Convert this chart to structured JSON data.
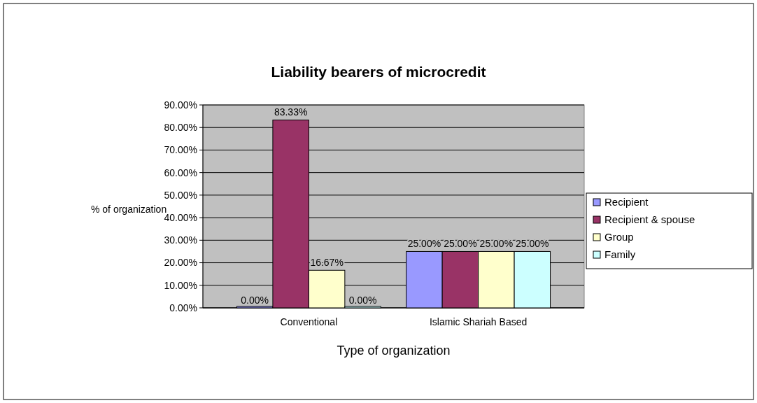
{
  "chart_data": {
    "type": "bar",
    "title": "Liability bearers of microcredit",
    "xlabel": "Type of organization",
    "ylabel": "% of organization",
    "categories": [
      "Conventional",
      "Islamic Shariah Based"
    ],
    "series": [
      {
        "name": "Recipient",
        "color": "#9999ff",
        "values": [
          0,
          25
        ],
        "value_labels": [
          "0.00%",
          "25.00%"
        ]
      },
      {
        "name": "Recipient & spouse",
        "color": "#993366",
        "values": [
          83.33,
          25
        ],
        "value_labels": [
          "83.33%",
          "25.00%"
        ]
      },
      {
        "name": "Group",
        "color": "#ffffcc",
        "values": [
          16.67,
          25
        ],
        "value_labels": [
          "16.67%",
          "25.00%"
        ]
      },
      {
        "name": "Family",
        "color": "#ccffff",
        "values": [
          0,
          25
        ],
        "value_labels": [
          "0.00%",
          "25.00%"
        ]
      }
    ],
    "ylim": [
      0,
      90
    ],
    "yticks": [
      {
        "value": 0,
        "label": "0.00%"
      },
      {
        "value": 10,
        "label": "10.00%"
      },
      {
        "value": 20,
        "label": "20.00%"
      },
      {
        "value": 30,
        "label": "30.00%"
      },
      {
        "value": 40,
        "label": "40.00%"
      },
      {
        "value": 50,
        "label": "50.00%"
      },
      {
        "value": 60,
        "label": "60.00%"
      },
      {
        "value": 70,
        "label": "70.00%"
      },
      {
        "value": 80,
        "label": "80.00%"
      },
      {
        "value": 90,
        "label": "90.00%"
      }
    ],
    "grid": "y",
    "legend": "right"
  }
}
